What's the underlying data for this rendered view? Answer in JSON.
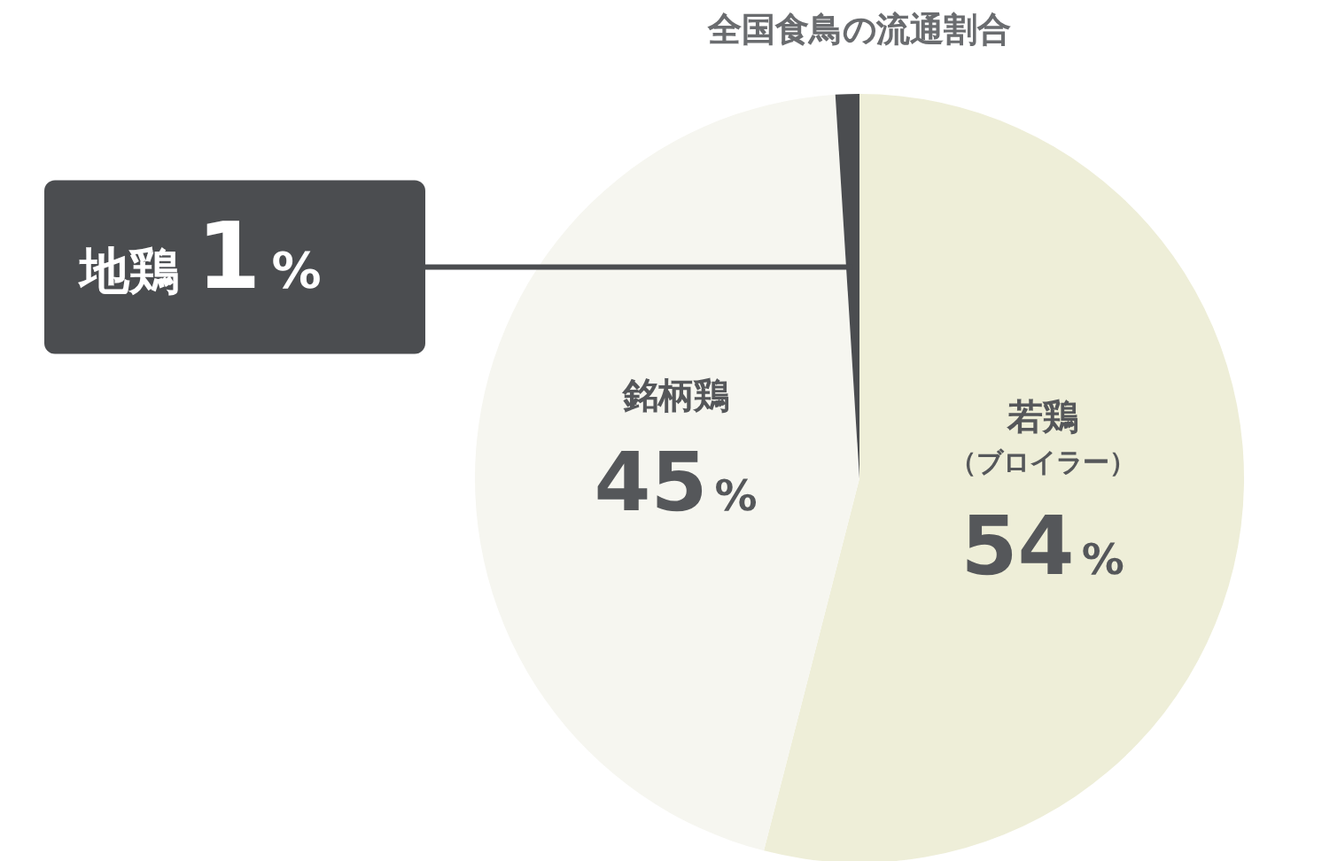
{
  "chart_data": {
    "type": "pie",
    "title": "全国食鳥の流通割合",
    "categories": [
      "若鶏（ブロイラー）",
      "銘柄鶏",
      "地鶏"
    ],
    "values": [
      54,
      45,
      1
    ],
    "value_labels": [
      "54%",
      "45%",
      "1%"
    ],
    "colors": [
      "#eeeed8",
      "#f6f6f0",
      "#4b4d50"
    ],
    "legend": false
  }
}
